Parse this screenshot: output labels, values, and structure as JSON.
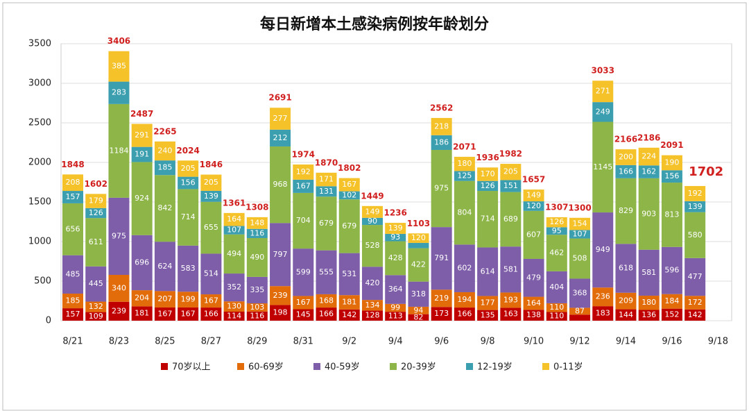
{
  "chart_data": {
    "type": "stacked-bar",
    "title": "每日新增本土感染病例按年龄划分",
    "categories": [
      "8/21",
      null,
      "8/23",
      null,
      "8/25",
      null,
      "8/27",
      null,
      "8/29",
      null,
      "8/31",
      null,
      "9/2",
      null,
      "9/4",
      null,
      "9/6",
      null,
      "9/8",
      null,
      "9/10",
      null,
      "9/12",
      null,
      "9/14",
      null,
      "9/16",
      null,
      "9/18"
    ],
    "series": [
      {
        "name": "70岁以上",
        "color": "#c00000",
        "values": [
          157,
          109,
          239,
          181,
          167,
          167,
          166,
          114,
          116,
          198,
          145,
          166,
          142,
          128,
          113,
          82,
          173,
          166,
          135,
          163,
          138,
          110,
          76,
          183,
          144,
          136,
          152,
          142,
          null
        ]
      },
      {
        "name": "60-69岁",
        "color": "#e36c0a",
        "values": [
          185,
          132,
          340,
          204,
          207,
          199,
          167,
          130,
          103,
          239,
          167,
          168,
          181,
          134,
          99,
          94,
          219,
          194,
          177,
          193,
          164,
          110,
          87,
          236,
          209,
          180,
          184,
          172,
          null
        ]
      },
      {
        "name": "40-59岁",
        "color": "#7e5ea8",
        "values": [
          485,
          445,
          975,
          696,
          624,
          583,
          514,
          352,
          335,
          797,
          599,
          555,
          531,
          420,
          364,
          318,
          791,
          602,
          614,
          581,
          479,
          404,
          368,
          949,
          618,
          581,
          596,
          477,
          null
        ]
      },
      {
        "name": "20-39岁",
        "color": "#8db548",
        "values": [
          656,
          611,
          1184,
          924,
          842,
          714,
          655,
          494,
          490,
          968,
          704,
          679,
          679,
          528,
          428,
          422,
          975,
          804,
          714,
          689,
          607,
          462,
          508,
          1145,
          829,
          903,
          813,
          580,
          null
        ]
      },
      {
        "name": "12-19岁",
        "color": "#3c9fb0",
        "values": [
          157,
          126,
          283,
          191,
          185,
          156,
          139,
          107,
          116,
          212,
          167,
          131,
          102,
          90,
          93,
          67,
          186,
          125,
          126,
          151,
          120,
          95,
          107,
          249,
          166,
          162,
          156,
          139,
          null
        ]
      },
      {
        "name": "0-11岁",
        "color": "#f5c22a",
        "values": [
          208,
          179,
          385,
          291,
          240,
          205,
          205,
          164,
          148,
          277,
          192,
          171,
          167,
          149,
          139,
          120,
          218,
          180,
          170,
          205,
          149,
          126,
          154,
          271,
          200,
          224,
          190,
          192,
          null
        ]
      }
    ],
    "totals": [
      1848,
      1602,
      3406,
      2487,
      2265,
      2024,
      1846,
      1361,
      1308,
      2691,
      1974,
      1870,
      1802,
      1449,
      1236,
      1103,
      2562,
      2071,
      1936,
      1982,
      1657,
      1307,
      1300,
      3033,
      2166,
      2186,
      2091,
      1702,
      null
    ],
    "ylim": [
      0,
      3500
    ],
    "yticks": [
      0,
      500,
      1000,
      1500,
      2000,
      2500,
      3000,
      3500
    ],
    "grid": true,
    "legend": "bottom"
  }
}
